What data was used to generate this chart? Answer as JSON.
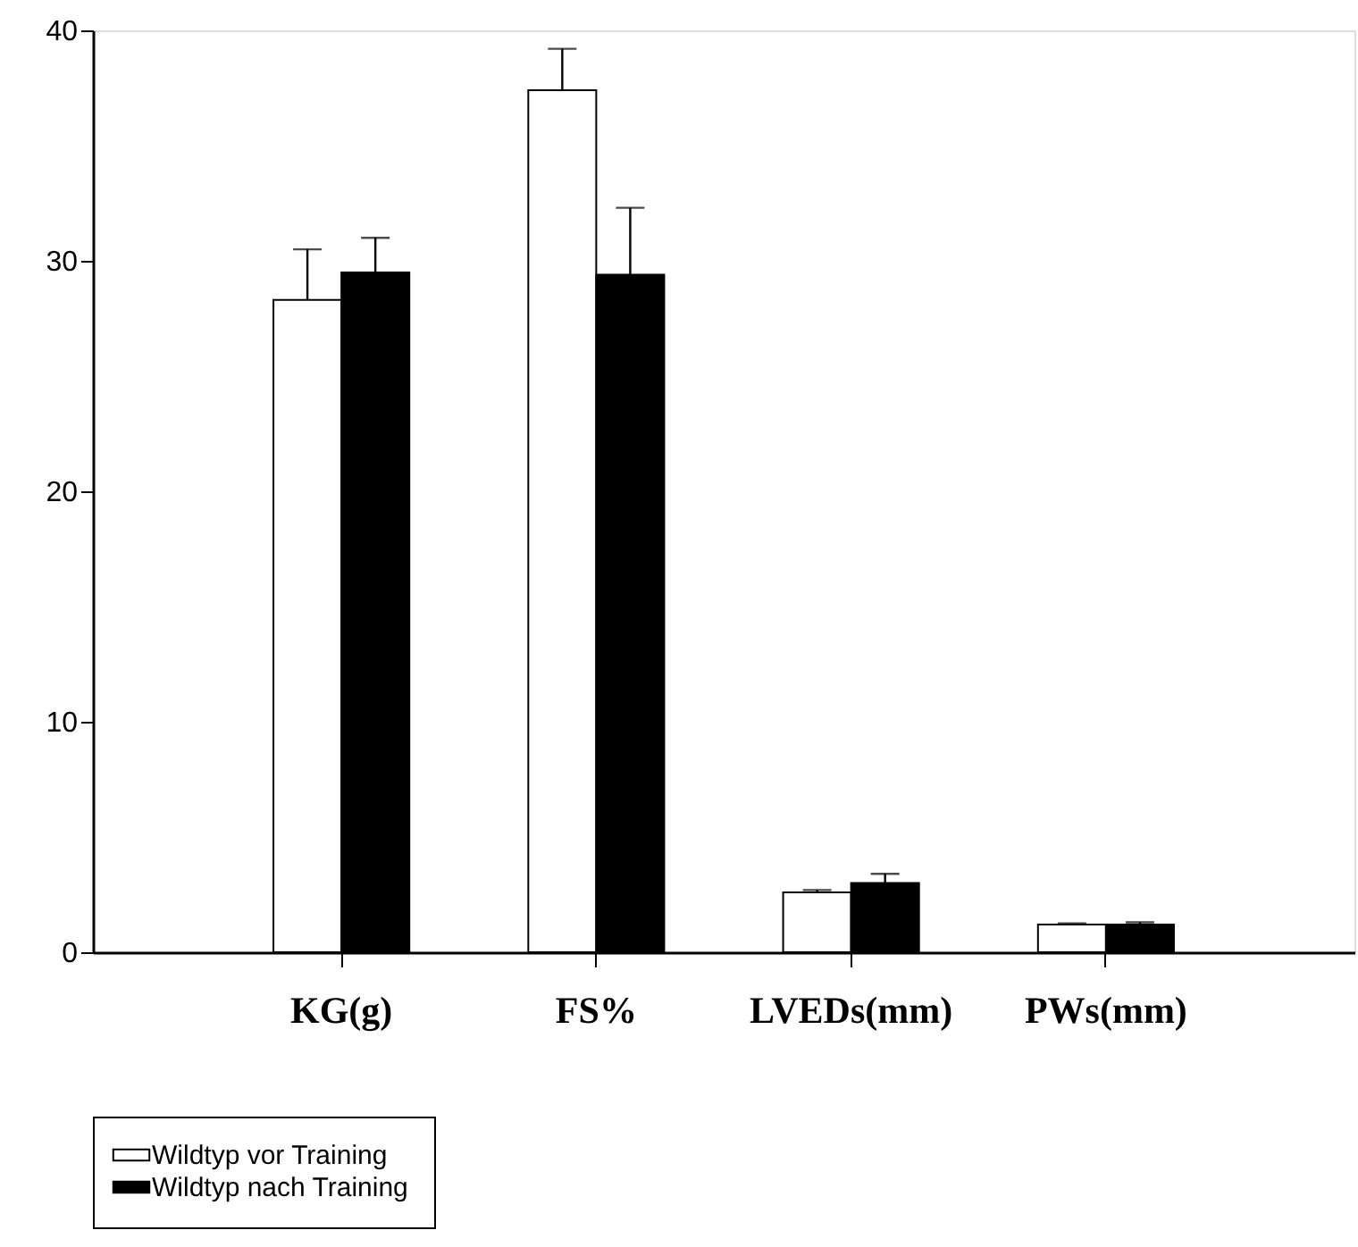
{
  "chart_data": {
    "type": "bar",
    "categories": [
      "KG(g)",
      "FS%",
      "LVEDs(mm)",
      "PWs(mm)"
    ],
    "series": [
      {
        "name": "Wildtyp vor Training",
        "color": "#ffffff",
        "values": [
          28.3,
          37.4,
          2.6,
          1.2
        ],
        "errors": [
          2.2,
          1.8,
          0.1,
          0.05
        ]
      },
      {
        "name": "Wildtyp nach Training",
        "color": "#000000",
        "values": [
          29.5,
          29.4,
          3.0,
          1.2
        ],
        "errors": [
          1.5,
          2.9,
          0.4,
          0.1
        ]
      }
    ],
    "ylim": [
      0,
      40
    ],
    "yticks": [
      0,
      10,
      20,
      30,
      40
    ],
    "grid": false,
    "legend": "bottom left"
  }
}
